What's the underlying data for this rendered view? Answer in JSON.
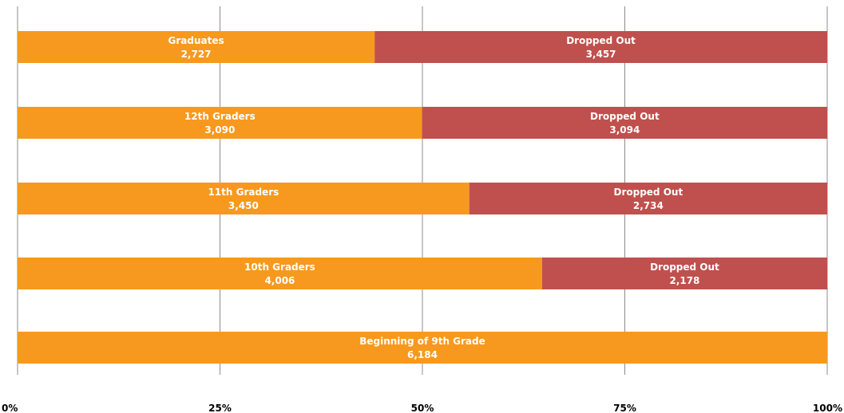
{
  "chart_data": {
    "type": "bar",
    "orientation": "horizontal",
    "stacked": "percent",
    "categories": [
      "Graduates",
      "12th Graders",
      "11th Graders",
      "10th Graders",
      "Beginning of 9th Grade"
    ],
    "series": [
      {
        "labels": [
          "Graduates",
          "12th Graders",
          "11th Graders",
          "10th Graders",
          "Beginning of 9th Grade"
        ],
        "values": [
          2727,
          3090,
          3450,
          4006,
          6184
        ],
        "value_labels": [
          "2,727",
          "3,090",
          "3,450",
          "4,006",
          "6,184"
        ],
        "color": "#F7991E"
      },
      {
        "labels": [
          "Dropped Out",
          "Dropped Out",
          "Dropped Out",
          "Dropped Out",
          ""
        ],
        "values": [
          3457,
          3094,
          2734,
          2178,
          0
        ],
        "value_labels": [
          "3,457",
          "3,094",
          "2,734",
          "2,178",
          ""
        ],
        "color": "#C0504D"
      }
    ],
    "x_ticks": [
      "0%",
      "25%",
      "50%",
      "75%",
      "100%"
    ],
    "xlim": [
      0,
      100
    ],
    "grid": "vertical",
    "legend": "none",
    "title": "",
    "xlabel": "",
    "ylabel": ""
  }
}
